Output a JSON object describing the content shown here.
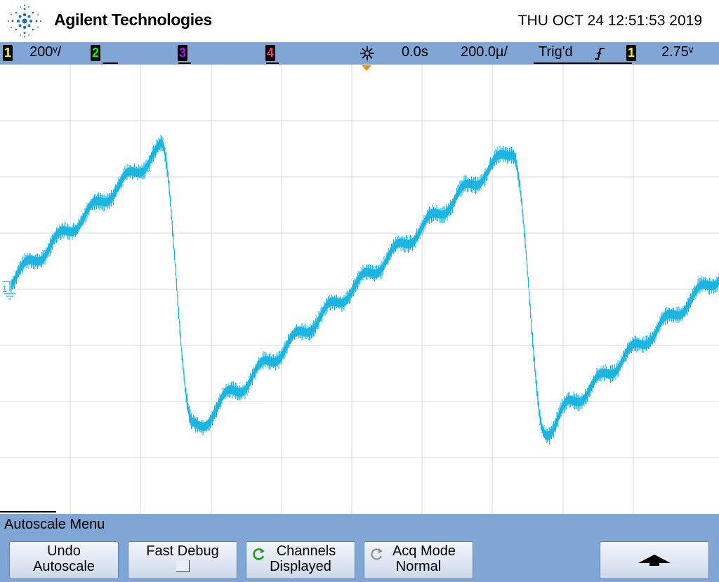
{
  "header": {
    "brand": "Agilent Technologies",
    "datetime": "THU OCT 24 12:51:53 2019",
    "logo_icon": "agilent-spark-logo-icon"
  },
  "status_bar": {
    "channel1": {
      "num": "1",
      "scale": "200ᵛ/",
      "color": "#ffff00"
    },
    "channel2": {
      "num": "2",
      "color": "#00ff00"
    },
    "channel3": {
      "num": "3",
      "color": "#c000ff"
    },
    "channel4": {
      "num": "4",
      "color": "#ff3080"
    },
    "time_ref_icon": "time-reference-icon",
    "delay": "0.0s",
    "timebase": "200.0µ/",
    "trigger_status": "Trig'd",
    "trigger_slope_icon": "rising-edge-icon",
    "trigger_channel": "1",
    "trigger_level": "2.75ᵛ"
  },
  "screen": {
    "channel1_marker": "1",
    "trace_color": "#12b3e0",
    "grid_color": "#d8d8d8",
    "trigger_marker_color": "#ff8c00"
  },
  "menu": {
    "title": "Autoscale Menu",
    "softkeys": [
      {
        "line1": "Undo",
        "line2": "Autoscale"
      },
      {
        "line1": "Fast Debug",
        "line2": ""
      },
      {
        "line1": "Channels",
        "line2": "Displayed",
        "icon": "cycle-icon-green"
      },
      {
        "line1": "Acq Mode",
        "line2": "Normal",
        "icon": "cycle-icon-gray"
      },
      {
        "icon": "up-arrow-icon"
      }
    ]
  }
}
